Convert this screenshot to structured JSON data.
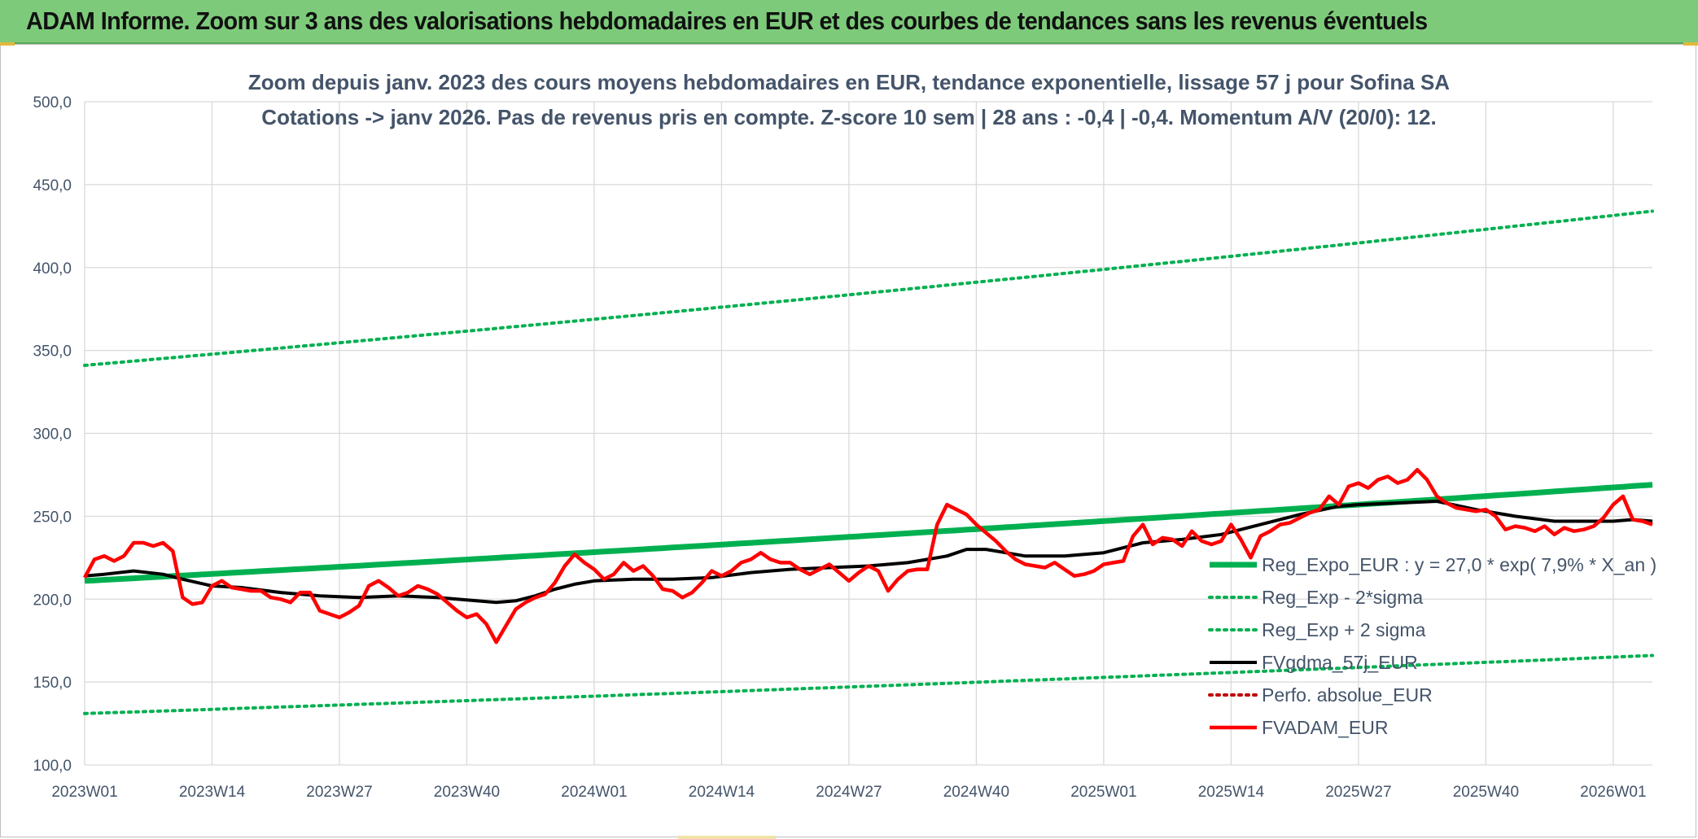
{
  "header": {
    "title": "ADAM Informe. Zoom sur 3 ans des valorisations hebdomadaires en EUR et des courbes de tendances sans les revenus éventuels"
  },
  "colors": {
    "banner": "#7dcb7a",
    "trend": "#00b050",
    "bands": "#00b050",
    "smoothed": "#000000",
    "price": "#ff0000",
    "perf": "#c00000",
    "gridline": "#d9d9d9",
    "text": "#44546a"
  },
  "chart_data": {
    "type": "line",
    "title_line1": "Zoom depuis janv. 2023 des cours moyens hebdomadaires en EUR, tendance exponentielle, lissage 57 j pour Sofina SA",
    "title_line2": "Cotations -> janv 2026. Pas de revenus pris en compte. Z-score 10 sem | 28 ans : -0,4 | -0,4. Momentum A/V (20/0): 12.",
    "ylim": [
      100,
      500
    ],
    "y_ticks": [
      100,
      150,
      200,
      250,
      300,
      350,
      400,
      450,
      500
    ],
    "y_tick_labels": [
      "100,0",
      "150,0",
      "200,0",
      "250,0",
      "300,0",
      "350,0",
      "400,0",
      "450,0",
      "500,0"
    ],
    "x_tick_labels": [
      "2023W01",
      "2023W14",
      "2023W27",
      "2023W40",
      "2024W01",
      "2024W14",
      "2024W27",
      "2024W40",
      "2025W01",
      "2025W14",
      "2025W27",
      "2025W40",
      "2026W01"
    ],
    "x_tick_weeks": [
      0,
      13,
      26,
      39,
      52,
      65,
      78,
      91,
      104,
      117,
      130,
      143,
      156
    ],
    "x_range_weeks": [
      0,
      160
    ],
    "grid": true,
    "legend_position": "right",
    "series": [
      {
        "name": "Reg_Expo_EUR : y = 27,0 * exp( 7,9% *  X_an )",
        "style": "thick",
        "color": "#00b050",
        "x": [
          0,
          160
        ],
        "values": [
          211,
          269
        ],
        "curve": "exponential"
      },
      {
        "name": "Reg_Exp - 2*sigma",
        "style": "dotted",
        "color": "#00b050",
        "x": [
          0,
          160
        ],
        "values": [
          131,
          166
        ],
        "curve": "exponential"
      },
      {
        "name": "Reg_Exp + 2 sigma",
        "style": "dotted",
        "color": "#00b050",
        "x": [
          0,
          160
        ],
        "values": [
          341,
          434
        ],
        "curve": "exponential"
      },
      {
        "name": "FVgdma_57j_EUR",
        "style": "solid",
        "color": "#000000",
        "x": [
          0,
          2,
          5,
          8,
          10,
          13,
          16,
          20,
          24,
          28,
          32,
          36,
          40,
          42,
          44,
          46,
          48,
          50,
          52,
          56,
          60,
          64,
          68,
          72,
          76,
          80,
          84,
          88,
          90,
          92,
          94,
          96,
          100,
          104,
          106,
          108,
          112,
          116,
          120,
          124,
          128,
          130,
          134,
          138,
          142,
          146,
          150,
          154,
          156,
          158,
          160
        ],
        "values": [
          214,
          215,
          217,
          215,
          212,
          208,
          207,
          204,
          202,
          201,
          202,
          201,
          199,
          198,
          199,
          202,
          206,
          209,
          211,
          212,
          212,
          213,
          216,
          218,
          219,
          220,
          222,
          226,
          230,
          230,
          228,
          226,
          226,
          228,
          231,
          234,
          236,
          239,
          245,
          251,
          256,
          257,
          258,
          259,
          254,
          250,
          247,
          247,
          247,
          248,
          247
        ]
      },
      {
        "name": "Perfo. absolue_EUR",
        "style": "dotted",
        "color": "#c00000",
        "x": [],
        "values": []
      },
      {
        "name": "FVADAM_EUR",
        "style": "solid",
        "color": "#ff0000",
        "x": [
          0,
          1,
          2,
          3,
          4,
          5,
          6,
          7,
          8,
          9,
          10,
          11,
          12,
          13,
          14,
          15,
          16,
          17,
          18,
          19,
          20,
          21,
          22,
          23,
          24,
          25,
          26,
          27,
          28,
          29,
          30,
          31,
          32,
          33,
          34,
          35,
          36,
          37,
          38,
          39,
          40,
          41,
          42,
          43,
          44,
          45,
          46,
          47,
          48,
          49,
          50,
          51,
          52,
          53,
          54,
          55,
          56,
          57,
          58,
          59,
          60,
          61,
          62,
          63,
          64,
          65,
          66,
          67,
          68,
          69,
          70,
          71,
          72,
          73,
          74,
          75,
          76,
          77,
          78,
          79,
          80,
          81,
          82,
          83,
          84,
          85,
          86,
          87,
          88,
          89,
          90,
          91,
          92,
          93,
          94,
          95,
          96,
          97,
          98,
          99,
          100,
          101,
          102,
          103,
          104,
          105,
          106,
          107,
          108,
          109,
          110,
          111,
          112,
          113,
          114,
          115,
          116,
          117,
          118,
          119,
          120,
          121,
          122,
          123,
          124,
          125,
          126,
          127,
          128,
          129,
          130,
          131,
          132,
          133,
          134,
          135,
          136,
          137,
          138,
          139,
          140,
          141,
          142,
          143,
          144,
          145,
          146,
          147,
          148,
          149,
          150,
          151,
          152,
          153,
          154,
          155,
          156,
          157,
          158,
          159,
          160
        ],
        "values": [
          213,
          224,
          226,
          223,
          226,
          234,
          234,
          232,
          234,
          229,
          201,
          197,
          198,
          208,
          211,
          207,
          206,
          205,
          205,
          201,
          200,
          198,
          204,
          204,
          193,
          191,
          189,
          192,
          196,
          208,
          211,
          207,
          202,
          204,
          208,
          206,
          203,
          198,
          193,
          189,
          191,
          185,
          174,
          184,
          194,
          198,
          201,
          203,
          210,
          220,
          227,
          222,
          218,
          212,
          215,
          222,
          217,
          220,
          214,
          206,
          205,
          201,
          204,
          210,
          217,
          214,
          217,
          222,
          224,
          228,
          224,
          222,
          222,
          218,
          215,
          218,
          221,
          216,
          211,
          216,
          220,
          217,
          205,
          212,
          217,
          218,
          218,
          245,
          257,
          254,
          251,
          245,
          240,
          235,
          229,
          224,
          221,
          220,
          219,
          222,
          218,
          214,
          215,
          217,
          221,
          222,
          223,
          238,
          245,
          233,
          237,
          236,
          232,
          241,
          235,
          233,
          235,
          245,
          236,
          225,
          238,
          241,
          245,
          246,
          249,
          252,
          254,
          262,
          257,
          268,
          270,
          267,
          272,
          274,
          270,
          272,
          278,
          272,
          262,
          258,
          255,
          254,
          253,
          254,
          250,
          242,
          244,
          243,
          241,
          244,
          239,
          243,
          241,
          242,
          244,
          249,
          257,
          262,
          248,
          247,
          245
        ]
      }
    ]
  }
}
